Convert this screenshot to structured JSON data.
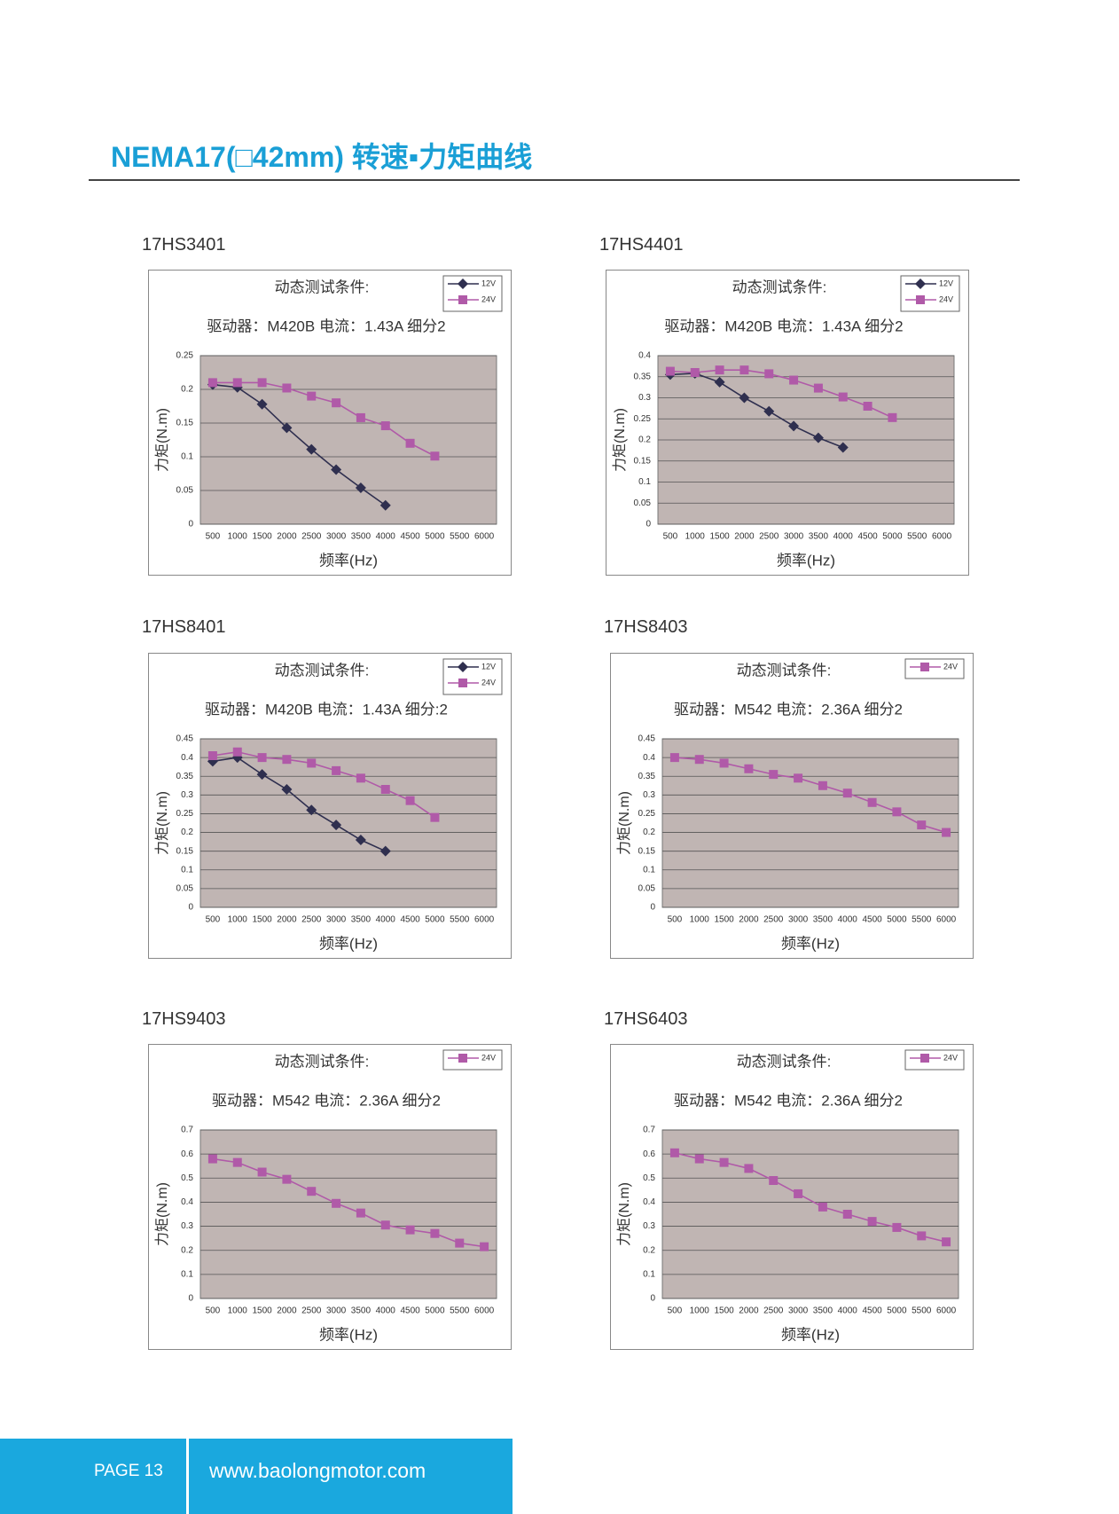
{
  "header": {
    "title": "NEMA17(□42mm) 转速▪力矩曲线"
  },
  "chart_data": [
    {
      "type": "line",
      "model": "17HS3401",
      "title": "动态测试条件:",
      "subtitle": "驱动器：M420B  电流：1.43A  细分2",
      "x_label": "频率(Hz)",
      "y_label": "力矩(N.m)",
      "categories": [
        500,
        1000,
        1500,
        2000,
        2500,
        3000,
        3500,
        4000,
        4500,
        5000,
        5500,
        6000
      ],
      "series": [
        {
          "name": "12V",
          "color": "#2f2f4f",
          "marker": "diamond",
          "values": [
            0.207,
            0.203,
            0.178,
            0.143,
            0.111,
            0.081,
            0.054,
            0.028,
            null,
            null,
            null,
            null
          ]
        },
        {
          "name": "24V",
          "color": "#b05aa8",
          "marker": "square",
          "values": [
            0.21,
            0.21,
            0.21,
            0.202,
            0.19,
            0.18,
            0.158,
            0.146,
            0.12,
            0.101,
            null,
            null
          ]
        }
      ],
      "ylim": [
        0,
        0.25
      ],
      "yticks": [
        0,
        0.05,
        0.1,
        0.15,
        0.2,
        0.25
      ],
      "grid": true
    },
    {
      "type": "line",
      "model": "17HS4401",
      "title": "动态测试条件:",
      "subtitle": "驱动器：M420B  电流：1.43A  细分2",
      "x_label": "频率(Hz)",
      "y_label": "力矩(N.m)",
      "categories": [
        500,
        1000,
        1500,
        2000,
        2500,
        3000,
        3500,
        4000,
        4500,
        5000,
        5500,
        6000
      ],
      "series": [
        {
          "name": "12V",
          "color": "#2f2f4f",
          "marker": "diamond",
          "values": [
            0.355,
            0.358,
            0.337,
            0.3,
            0.268,
            0.233,
            0.205,
            0.182,
            null,
            null,
            null,
            null
          ]
        },
        {
          "name": "24V",
          "color": "#b05aa8",
          "marker": "square",
          "values": [
            0.363,
            0.36,
            0.366,
            0.366,
            0.357,
            0.342,
            0.323,
            0.302,
            0.28,
            0.253,
            null,
            null
          ]
        }
      ],
      "ylim": [
        0,
        0.4
      ],
      "yticks": [
        0,
        0.05,
        0.1,
        0.15,
        0.2,
        0.25,
        0.3,
        0.35,
        0.4
      ],
      "grid": true
    },
    {
      "type": "line",
      "model": "17HS8401",
      "title": "动态测试条件:",
      "subtitle": "驱动器：M420B  电流：1.43A  细分:2",
      "x_label": "频率(Hz)",
      "y_label": "力矩(N.m)",
      "categories": [
        500,
        1000,
        1500,
        2000,
        2500,
        3000,
        3500,
        4000,
        4500,
        5000,
        5500,
        6000
      ],
      "series": [
        {
          "name": "12V",
          "color": "#2f2f4f",
          "marker": "diamond",
          "values": [
            0.39,
            0.4,
            0.355,
            0.315,
            0.26,
            0.22,
            0.18,
            0.15,
            null,
            null,
            null,
            null
          ]
        },
        {
          "name": "24V",
          "color": "#b05aa8",
          "marker": "square",
          "values": [
            0.405,
            0.415,
            0.4,
            0.395,
            0.385,
            0.365,
            0.345,
            0.315,
            0.285,
            0.24,
            null,
            null
          ]
        }
      ],
      "ylim": [
        0,
        0.45
      ],
      "yticks": [
        0,
        0.05,
        0.1,
        0.15,
        0.2,
        0.25,
        0.3,
        0.35,
        0.4,
        0.45
      ],
      "grid": true
    },
    {
      "type": "line",
      "model": "17HS8403",
      "title": "动态测试条件:",
      "subtitle": "驱动器：M542  电流：2.36A  细分2",
      "x_label": "频率(Hz)",
      "y_label": "力矩(N.m)",
      "categories": [
        500,
        1000,
        1500,
        2000,
        2500,
        3000,
        3500,
        4000,
        4500,
        5000,
        5500,
        6000
      ],
      "series": [
        {
          "name": "24V",
          "color": "#b05aa8",
          "marker": "square",
          "values": [
            0.4,
            0.395,
            0.385,
            0.37,
            0.355,
            0.345,
            0.325,
            0.305,
            0.28,
            0.255,
            0.22,
            0.2
          ]
        }
      ],
      "ylim": [
        0,
        0.45
      ],
      "yticks": [
        0,
        0.05,
        0.1,
        0.15,
        0.2,
        0.25,
        0.3,
        0.35,
        0.4,
        0.45
      ],
      "grid": true
    },
    {
      "type": "line",
      "model": "17HS9403",
      "title": "动态测试条件:",
      "subtitle": "驱动器：M542  电流：2.36A  细分2",
      "x_label": "频率(Hz)",
      "y_label": "力矩(N.m)",
      "categories": [
        500,
        1000,
        1500,
        2000,
        2500,
        3000,
        3500,
        4000,
        4500,
        5000,
        5500,
        6000
      ],
      "series": [
        {
          "name": "24V",
          "color": "#b05aa8",
          "marker": "square",
          "values": [
            0.58,
            0.565,
            0.525,
            0.495,
            0.445,
            0.395,
            0.355,
            0.305,
            0.285,
            0.27,
            0.23,
            0.215
          ]
        }
      ],
      "ylim": [
        0,
        0.7
      ],
      "yticks": [
        0,
        0.1,
        0.2,
        0.3,
        0.4,
        0.5,
        0.6,
        0.7
      ],
      "grid": true
    },
    {
      "type": "line",
      "model": "17HS6403",
      "title": "动态测试条件:",
      "subtitle": "驱动器：M542  电流：2.36A  细分2",
      "x_label": "频率(Hz)",
      "y_label": "力矩(N.m)",
      "categories": [
        500,
        1000,
        1500,
        2000,
        2500,
        3000,
        3500,
        4000,
        4500,
        5000,
        5500,
        6000
      ],
      "series": [
        {
          "name": "24V",
          "color": "#b05aa8",
          "marker": "square",
          "values": [
            0.605,
            0.58,
            0.565,
            0.54,
            0.49,
            0.435,
            0.38,
            0.35,
            0.32,
            0.295,
            0.26,
            0.235
          ]
        }
      ],
      "ylim": [
        0,
        0.7
      ],
      "yticks": [
        0,
        0.1,
        0.2,
        0.3,
        0.4,
        0.5,
        0.6,
        0.7
      ],
      "grid": true
    }
  ],
  "footer": {
    "page": "PAGE 13",
    "url": "www.baolongmotor.com"
  }
}
